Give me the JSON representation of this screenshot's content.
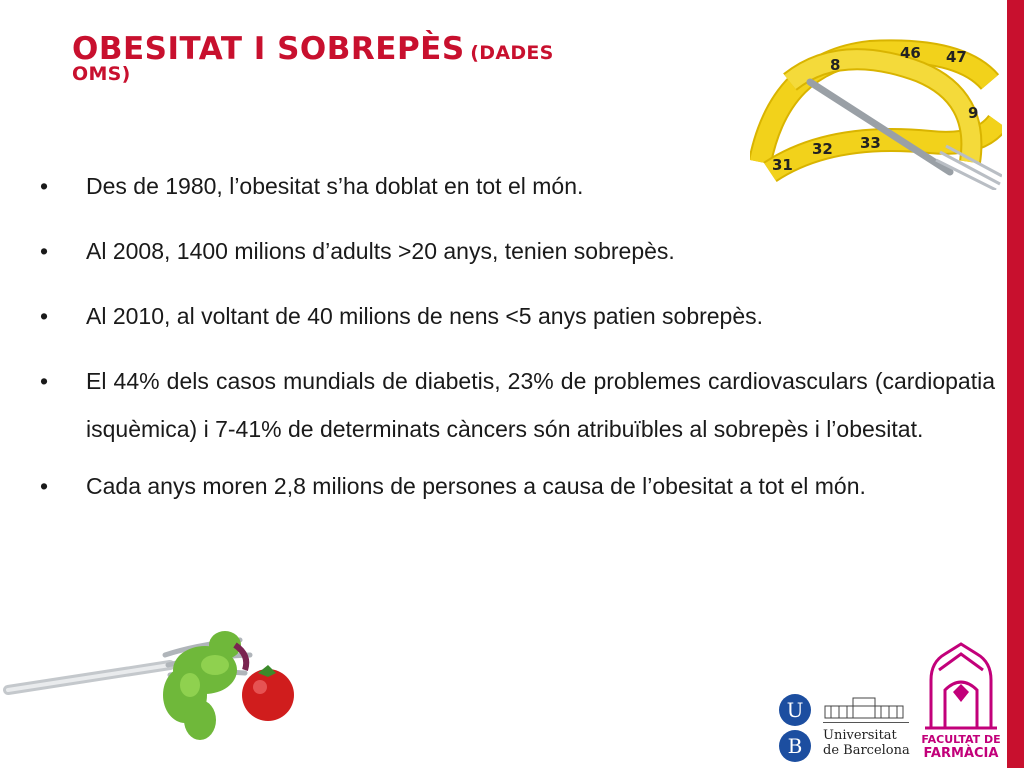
{
  "slide": {
    "title_main": "Obesitat i sobrepès",
    "title_sub_line1": "(DADES",
    "title_sub_line2": "OMS)"
  },
  "bullets": [
    "Des de 1980, l’obesitat s’ha doblat en tot el món.",
    "Al 2008, 1400 milions d’adults >20 anys, tenien sobrepès.",
    "Al 2010, al voltant de 40 milions de nens  <5 anys patien sobrepès.",
    "El 44% dels casos mundials de diabetis, 23% de problemes cardiovasculars (cardiopatia isquèmica) i 7-41% de determinats càncers són atribuïbles al sobrepès i l’obesitat.",
    "Cada anys moren 2,8 milions de persones a causa de l’obesitat a tot el món."
  ],
  "bullet_symbol": "•",
  "logos": {
    "ub_letter_u": "U",
    "ub_letter_b": "B",
    "ub_line1": "Universitat",
    "ub_line2": "de Barcelona",
    "faculty_line1": "FACULTAT DE",
    "faculty_line2": "FARMÀCIA"
  },
  "images": {
    "top_right": "measuring-tape-and-fork",
    "bottom_left": "fork-with-lettuce-and-tomato"
  },
  "colors": {
    "accent": "#c8102e",
    "text": "#1a1a1a",
    "ub_blue": "#1c4ea0",
    "faculty_magenta": "#c2007a",
    "tape_yellow": "#f2d21b"
  }
}
